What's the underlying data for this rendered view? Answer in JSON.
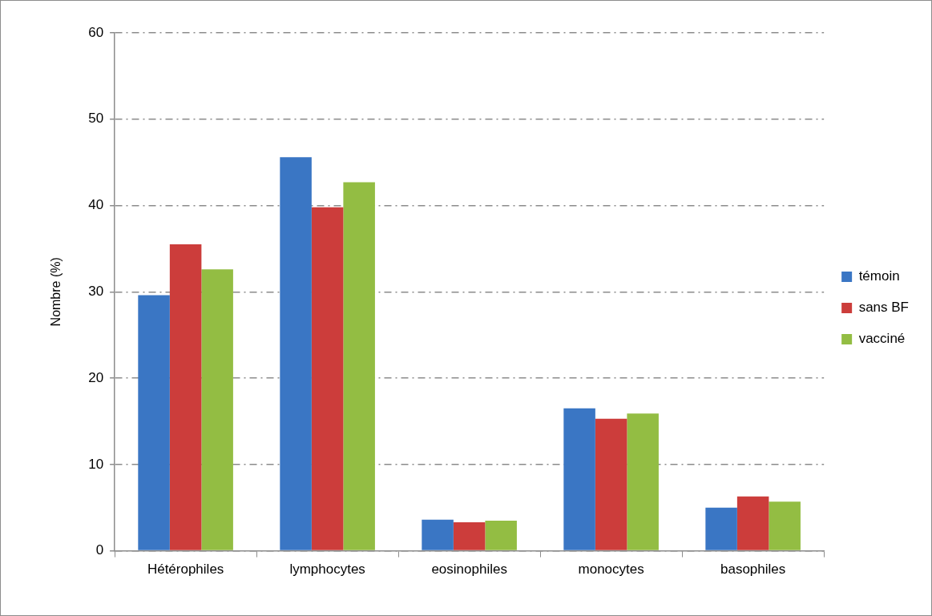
{
  "chart_data": {
    "type": "bar",
    "ylabel": "Nombre (%)",
    "categories": [
      "Hétérophiles",
      "lymphocytes",
      "eosinophiles",
      "monocytes",
      "basophiles"
    ],
    "series": [
      {
        "name": "témoin",
        "color": "#3a76c4",
        "values": [
          29.6,
          45.6,
          3.6,
          16.5,
          5.0
        ]
      },
      {
        "name": "sans BF",
        "color": "#cc3d3b",
        "values": [
          35.5,
          39.8,
          3.3,
          15.3,
          6.3
        ]
      },
      {
        "name": "vacciné",
        "color": "#93bd43",
        "values": [
          32.6,
          42.7,
          3.5,
          15.9,
          5.7
        ]
      }
    ],
    "ylim": [
      0,
      60
    ],
    "yticks": [
      0,
      10,
      20,
      30,
      40,
      50,
      60
    ],
    "grid": "y",
    "legend": "right"
  }
}
